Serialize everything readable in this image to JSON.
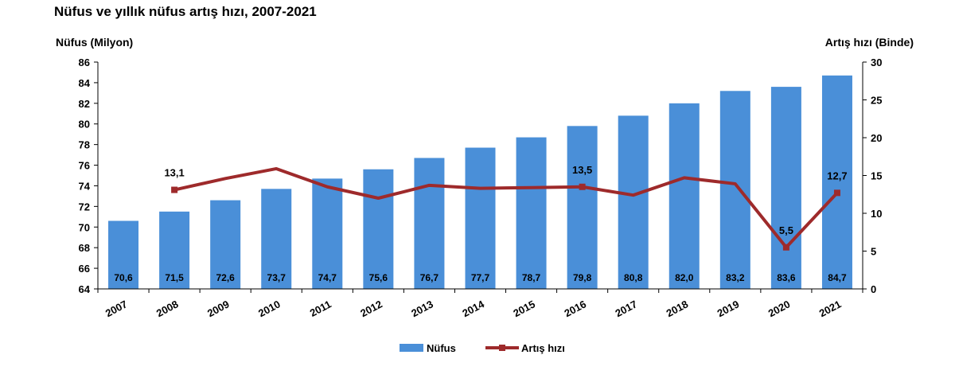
{
  "title": "Nüfus ve yıllık nüfus artış hızı, 2007-2021",
  "colors": {
    "bar": "#4a8fd8",
    "line": "#9e2a2b",
    "axis": "#000000",
    "label": "#000000"
  },
  "chart_data": {
    "type": "bar",
    "categories": [
      "2007",
      "2008",
      "2009",
      "2010",
      "2011",
      "2012",
      "2013",
      "2014",
      "2015",
      "2016",
      "2017",
      "2018",
      "2019",
      "2020",
      "2021"
    ],
    "series": [
      {
        "name": "Nüfus",
        "type": "bar",
        "axis": "left",
        "values": [
          70.6,
          71.5,
          72.6,
          73.7,
          74.7,
          75.6,
          76.7,
          77.7,
          78.7,
          79.8,
          80.8,
          82.0,
          83.2,
          83.6,
          84.7
        ],
        "labels": [
          "70,6",
          "71,5",
          "72,6",
          "73,7",
          "74,7",
          "75,6",
          "76,7",
          "77,7",
          "78,7",
          "79,8",
          "80,8",
          "82,0",
          "83,2",
          "83,6",
          "84,7"
        ]
      },
      {
        "name": "Artış hızı",
        "type": "line",
        "axis": "right",
        "values": [
          null,
          13.1,
          14.6,
          15.9,
          13.5,
          12.0,
          13.7,
          13.3,
          13.4,
          13.5,
          12.4,
          14.7,
          13.9,
          5.5,
          12.7
        ],
        "labels": [
          null,
          "13,1",
          null,
          null,
          null,
          null,
          null,
          null,
          null,
          "13,5",
          null,
          null,
          null,
          "5,5",
          "12,7"
        ]
      }
    ],
    "ylabel_left": "Nüfus (Milyon)",
    "ylabel_right": "Artış hızı (Binde)",
    "ylim_left": [
      64,
      86
    ],
    "yticks_left": [
      64,
      66,
      68,
      70,
      72,
      74,
      76,
      78,
      80,
      82,
      84,
      86
    ],
    "ylim_right": [
      0,
      30
    ],
    "yticks_right": [
      0,
      5,
      10,
      15,
      20,
      25,
      30
    ],
    "grid": false,
    "legend_position": "bottom-center"
  }
}
